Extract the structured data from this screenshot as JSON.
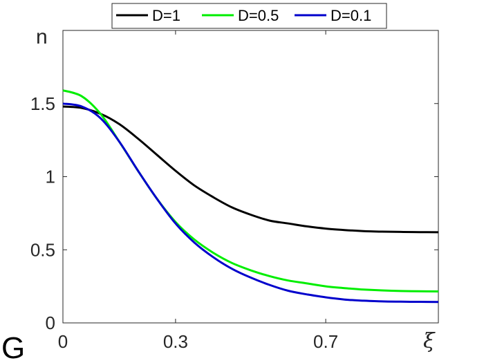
{
  "panel_label": "G",
  "chart_data": {
    "type": "line",
    "title": "",
    "xlabel": "ξ",
    "ylabel": "n",
    "xlim": [
      0,
      1
    ],
    "ylim": [
      0,
      2
    ],
    "xticks": [
      0,
      0.3,
      0.7
    ],
    "xtick_labels": [
      "0",
      "0.3",
      "0.7"
    ],
    "yticks": [
      0,
      0.5,
      1,
      1.5
    ],
    "ytick_labels": [
      "0",
      "0.5",
      "1",
      "1.5"
    ],
    "grid": false,
    "legend_position": "top",
    "series": [
      {
        "name": "D=1",
        "color": "#000000",
        "x": [
          0,
          0.05,
          0.1,
          0.15,
          0.2,
          0.25,
          0.3,
          0.35,
          0.4,
          0.45,
          0.5,
          0.55,
          0.6,
          0.65,
          0.7,
          0.75,
          0.8,
          0.85,
          0.9,
          0.95,
          1.0
        ],
        "y": [
          1.48,
          1.47,
          1.43,
          1.36,
          1.26,
          1.15,
          1.04,
          0.94,
          0.86,
          0.79,
          0.74,
          0.7,
          0.68,
          0.66,
          0.645,
          0.635,
          0.628,
          0.624,
          0.622,
          0.621,
          0.62
        ]
      },
      {
        "name": "D=0.5",
        "color": "#00ee00",
        "x": [
          0,
          0.05,
          0.1,
          0.15,
          0.2,
          0.25,
          0.3,
          0.35,
          0.4,
          0.45,
          0.5,
          0.55,
          0.6,
          0.65,
          0.7,
          0.75,
          0.8,
          0.85,
          0.9,
          0.95,
          1.0
        ],
        "y": [
          1.59,
          1.55,
          1.43,
          1.24,
          1.04,
          0.85,
          0.69,
          0.57,
          0.48,
          0.41,
          0.36,
          0.32,
          0.29,
          0.27,
          0.25,
          0.238,
          0.228,
          0.222,
          0.218,
          0.216,
          0.215
        ]
      },
      {
        "name": "D=0.1",
        "color": "#0000cc",
        "x": [
          0,
          0.05,
          0.1,
          0.15,
          0.2,
          0.25,
          0.3,
          0.35,
          0.4,
          0.45,
          0.5,
          0.55,
          0.6,
          0.65,
          0.7,
          0.75,
          0.8,
          0.85,
          0.9,
          0.95,
          1.0
        ],
        "y": [
          1.5,
          1.48,
          1.4,
          1.24,
          1.04,
          0.85,
          0.68,
          0.55,
          0.45,
          0.37,
          0.31,
          0.26,
          0.22,
          0.195,
          0.175,
          0.16,
          0.152,
          0.147,
          0.145,
          0.144,
          0.143
        ]
      }
    ]
  }
}
